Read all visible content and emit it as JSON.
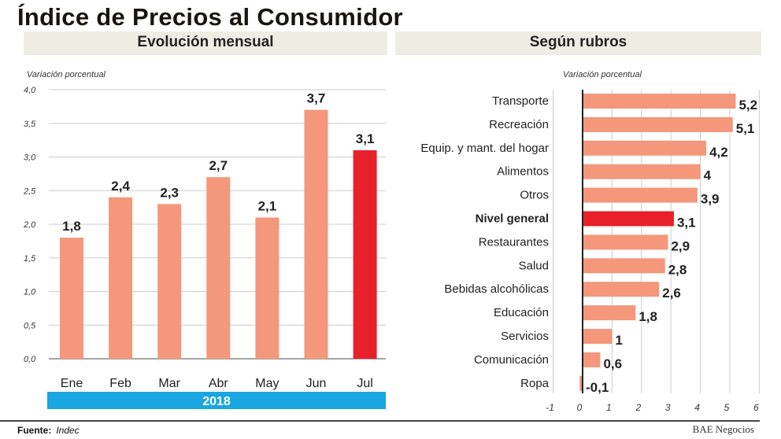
{
  "title": "Índice de Precios al Consumidor",
  "source_label": "Fuente:",
  "source_value": "Indec",
  "brand": "BAE Negocios",
  "colors": {
    "bar": "#f4977a",
    "highlight": "#e8202a",
    "year_band": "#1aa6e0"
  },
  "chart_data": [
    {
      "type": "bar",
      "title": "Evolución mensual",
      "ylabel": "Variación porcentual",
      "categories": [
        "Ene",
        "Feb",
        "Mar",
        "Abr",
        "May",
        "Jun",
        "Jul"
      ],
      "values": [
        1.8,
        2.4,
        2.3,
        2.7,
        2.1,
        3.7,
        3.1
      ],
      "value_labels": [
        "1,8",
        "2,4",
        "2,3",
        "2,7",
        "2,1",
        "3,7",
        "3,1"
      ],
      "highlight": "Jul",
      "ylim": [
        0,
        4
      ],
      "yticks": [
        "0,0",
        "0,5",
        "1,0",
        "1,5",
        "2,0",
        "2,5",
        "3,0",
        "3,5",
        "4,0"
      ],
      "year_label": "2018",
      "grid": true
    },
    {
      "type": "bar",
      "orientation": "horizontal",
      "title": "Según rubros",
      "xlabel": "Variación porcentual",
      "categories": [
        "Transporte",
        "Recreación",
        "Equip. y mant. del hogar",
        "Alimentos",
        "Otros",
        "Nivel general",
        "Restaurantes",
        "Salud",
        "Bebidas alcohólicas",
        "Educación",
        "Servicios",
        "Comunicación",
        "Ropa"
      ],
      "values": [
        5.2,
        5.1,
        4.2,
        4,
        3.9,
        3.1,
        2.9,
        2.8,
        2.6,
        1.8,
        1,
        0.6,
        -0.1
      ],
      "value_labels": [
        "5,2",
        "5,1",
        "4,2",
        "4",
        "3,9",
        "3,1",
        "2,9",
        "2,8",
        "2,6",
        "1,8",
        "1",
        "0,6",
        "-0,1"
      ],
      "highlight": "Nivel general",
      "xlim": [
        -1,
        6
      ],
      "xticks": [
        "-1",
        "0",
        "1",
        "2",
        "3",
        "4",
        "5",
        "6"
      ],
      "grid": true
    }
  ]
}
